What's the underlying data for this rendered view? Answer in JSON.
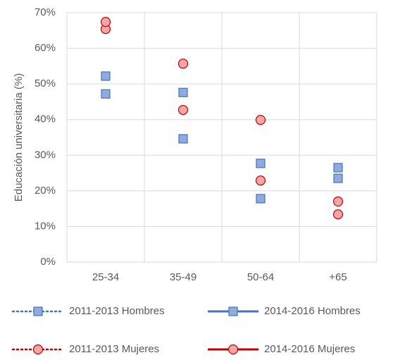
{
  "chart_data": {
    "type": "line",
    "y_label": "Educación universitaria (%)",
    "categories": [
      "25-34",
      "35-49",
      "50-64",
      "+65"
    ],
    "series": [
      {
        "name": "2011-2013 Hombres",
        "color": "#4472c4",
        "marker_fill": "#8faadc",
        "line_style": "dotted",
        "marker": "square",
        "values": [
          47.2,
          34.6,
          17.8,
          23.5
        ]
      },
      {
        "name": "2014-2016 Hombres",
        "color": "#4472c4",
        "marker_fill": "#8faadc",
        "line_style": "solid",
        "marker": "square",
        "values": [
          52.2,
          47.6,
          27.7,
          26.5
        ]
      },
      {
        "name": "2011-2013 Mujeres",
        "color": "#c00000",
        "marker_fill": "#f4a6a6",
        "line_style": "dotted",
        "marker": "circle",
        "values": [
          65.4,
          42.7,
          22.9,
          13.4
        ]
      },
      {
        "name": "2014-2016 Mujeres",
        "color": "#c00000",
        "marker_fill": "#f4a6a6",
        "line_style": "solid",
        "marker": "circle",
        "values": [
          67.4,
          55.7,
          39.9,
          17.0
        ]
      }
    ],
    "ylim": [
      0,
      70
    ],
    "yticks": [
      {
        "value": 0,
        "label": "0%"
      },
      {
        "value": 10,
        "label": "10%"
      },
      {
        "value": 20,
        "label": "20%"
      },
      {
        "value": 30,
        "label": "30%"
      },
      {
        "value": 40,
        "label": "40%"
      },
      {
        "value": 50,
        "label": "50%"
      },
      {
        "value": 60,
        "label": "60%"
      },
      {
        "value": 70,
        "label": "70%"
      }
    ],
    "grid": true,
    "legend": "bottom"
  }
}
